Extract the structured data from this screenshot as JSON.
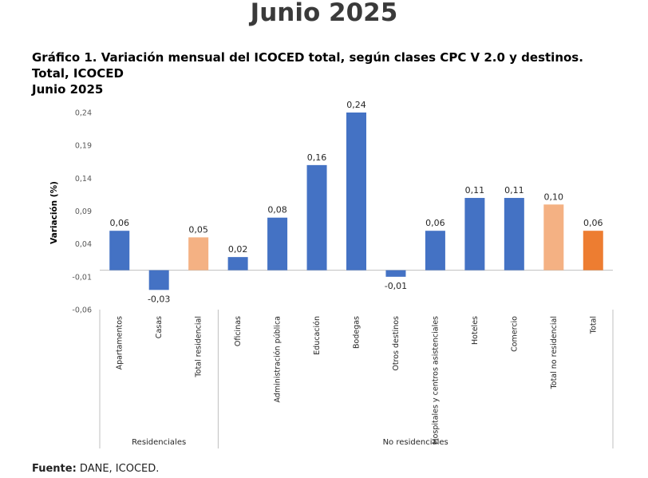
{
  "page_title": "Junio 2025",
  "chart_title_lines": [
    "Gráfico 1. Variación mensual del ICOCED total, según clases CPC V 2.0 y destinos.",
    "Total, ICOCED",
    "Junio 2025"
  ],
  "source": {
    "label": "Fuente:",
    "text": " DANE, ICOCED."
  },
  "colors": {
    "bar": "#4472c4",
    "total_destino": "#f4b183",
    "total": "#ed7d31",
    "grid": "#d9d9d9",
    "axis": "#bfbfbf"
  },
  "chart_data": {
    "type": "bar",
    "title": "Gráfico 1. Variación mensual del ICOCED total, según clases CPC V 2.0 y destinos. Total, ICOCED Junio 2025",
    "ylabel": "Variación (%)",
    "xlabel": "",
    "ylim": [
      -0.06,
      0.24
    ],
    "yticks": [
      "0,24",
      "0,19",
      "0,14",
      "0,09",
      "0,04",
      "-0,01",
      "-0,06"
    ],
    "ytick_values": [
      0.24,
      0.19,
      0.14,
      0.09,
      0.04,
      -0.01,
      -0.06
    ],
    "categories": [
      "Apartamentos",
      "Casas",
      "Total residencial",
      "Oficinas",
      "Administración pública",
      "Educación",
      "Bodegas",
      "Otros destinos",
      "Hospitales y centros asistenciales",
      "Hoteles",
      "Comercio",
      "Total no residencial",
      "Total"
    ],
    "values": [
      0.06,
      -0.03,
      0.05,
      0.02,
      0.08,
      0.16,
      0.24,
      -0.01,
      0.06,
      0.11,
      0.11,
      0.1,
      0.06
    ],
    "value_labels": [
      "0,06",
      "-0,03",
      "0,05",
      "0,02",
      "0,08",
      "0,16",
      "0,24",
      "-0,01",
      "0,06",
      "0,11",
      "0,11",
      "0,10",
      "0,06"
    ],
    "bar_kind": [
      "bar",
      "bar",
      "total_destino",
      "bar",
      "bar",
      "bar",
      "bar",
      "bar",
      "bar",
      "bar",
      "bar",
      "total_destino",
      "total"
    ],
    "groups": [
      {
        "label": "Residenciales",
        "start": 0,
        "end": 2
      },
      {
        "label": "No residenciales",
        "start": 3,
        "end": 12
      }
    ],
    "grid": false,
    "legend": "none"
  }
}
